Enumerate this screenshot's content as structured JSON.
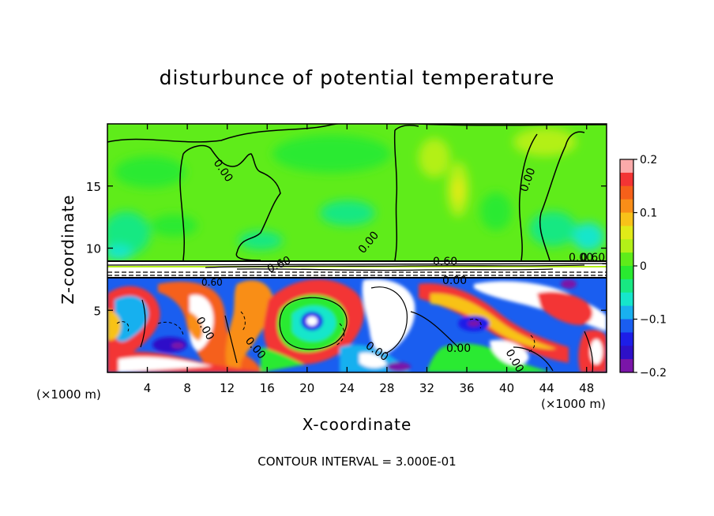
{
  "figure": {
    "title": "disturbunce of potential temperature",
    "contour_interval": "CONTOUR INTERVAL = 3.000E-01",
    "x_unit_left": "(×1000 m)",
    "x_unit_right": "(×1000 m)"
  },
  "chart_data": {
    "type": "heatmap",
    "title": "disturbunce of potential temperature",
    "xlabel": "X-coordinate",
    "ylabel": "Z-coordinate",
    "xlim": [
      0,
      50
    ],
    "ylim": [
      0,
      20
    ],
    "x_ticks": [
      4,
      8,
      12,
      16,
      20,
      24,
      28,
      32,
      36,
      40,
      44,
      48
    ],
    "y_ticks": [
      5,
      10,
      15
    ],
    "colorbar": {
      "range": [
        -0.2,
        0.2
      ],
      "tick_values": [
        0.2,
        0.1,
        0,
        -0.1,
        -0.2
      ],
      "tick_labels": [
        "0.2",
        "0.1",
        "0",
        "−0.1",
        "−0.2"
      ],
      "colors": [
        "#fbaaaa",
        "#f33434",
        "#f5601a",
        "#f98e18",
        "#f8c219",
        "#e1ea18",
        "#b3f018",
        "#5fec1a",
        "#29ea30",
        "#18e882",
        "#16e6cb",
        "#19b0ef",
        "#1a5ef0",
        "#1d1ee8",
        "#2e10c8",
        "#7a15a8"
      ]
    },
    "contour_labels": [
      "0.00",
      "0.00",
      "0.00",
      "0.00",
      "0.00",
      "0.00",
      "0.00",
      "0.00",
      "0.00",
      "0.00",
      "0.60",
      "0.60",
      "0.60",
      "0.60"
    ],
    "contour_interval": 0.3
  }
}
